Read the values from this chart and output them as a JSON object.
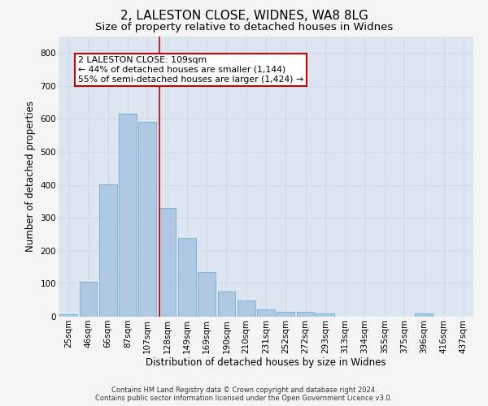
{
  "title": "2, LALESTON CLOSE, WIDNES, WA8 8LG",
  "subtitle": "Size of property relative to detached houses in Widnes",
  "xlabel": "Distribution of detached houses by size in Widnes",
  "ylabel": "Number of detached properties",
  "footer_line1": "Contains HM Land Registry data © Crown copyright and database right 2024.",
  "footer_line2": "Contains public sector information licensed under the Open Government Licence v3.0.",
  "categories": [
    "25sqm",
    "46sqm",
    "66sqm",
    "87sqm",
    "107sqm",
    "128sqm",
    "149sqm",
    "169sqm",
    "190sqm",
    "210sqm",
    "231sqm",
    "252sqm",
    "272sqm",
    "293sqm",
    "313sqm",
    "334sqm",
    "355sqm",
    "375sqm",
    "396sqm",
    "416sqm",
    "437sqm"
  ],
  "values": [
    8,
    107,
    402,
    617,
    592,
    330,
    238,
    135,
    77,
    50,
    22,
    16,
    16,
    9,
    0,
    0,
    0,
    0,
    9,
    0,
    0
  ],
  "bar_color": "#adc8e0",
  "bar_edge_color": "#6aafd4",
  "annotation_box_text": "2 LALESTON CLOSE: 109sqm\n← 44% of detached houses are smaller (1,144)\n55% of semi-detached houses are larger (1,424) →",
  "annotation_box_color": "#ffffff",
  "annotation_box_edge_color": "#cc0000",
  "vline_color": "#cc0000",
  "vline_x_index": 4.62,
  "ylim": [
    0,
    850
  ],
  "yticks": [
    0,
    100,
    200,
    300,
    400,
    500,
    600,
    700,
    800
  ],
  "grid_color": "#d0d8e4",
  "background_color": "#dde6f0",
  "fig_background_color": "#f5f5f5",
  "title_fontsize": 11,
  "subtitle_fontsize": 9.5,
  "xlabel_fontsize": 8.5,
  "ylabel_fontsize": 8.5,
  "tick_fontsize": 7.5,
  "annotation_fontsize": 7.8,
  "footer_fontsize": 6.0
}
